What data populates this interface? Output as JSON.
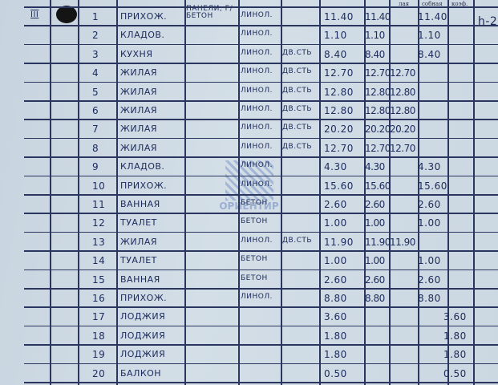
{
  "header": {
    "residential_partial": "лая",
    "auxiliary_partial": "собная",
    "coefficient": "коэф."
  },
  "section": "III",
  "height_note": "h-2",
  "walls_note": "ПАНЕЛИ, Г/БЕТОН",
  "watermark": "ОРИЕНТИР",
  "rows": [
    {
      "n": "1",
      "name": "ПРИХОЖ.",
      "floor": "ЛИНОЛ.",
      "door": "",
      "total": "11.40",
      "area": "11.40",
      "living": "",
      "aux": "11.40",
      "coef": ""
    },
    {
      "n": "2",
      "name": "КЛАДОВ.",
      "floor": "ЛИНОЛ.",
      "door": "",
      "total": "1.10",
      "area": "1.10",
      "living": "",
      "aux": "1.10",
      "coef": ""
    },
    {
      "n": "3",
      "name": "КУХНЯ",
      "floor": "ЛИНОЛ.",
      "door": "ДВ.СТЬ",
      "total": "8.40",
      "area": "8.40",
      "living": "",
      "aux": "8.40",
      "coef": ""
    },
    {
      "n": "4",
      "name": "ЖИЛАЯ",
      "floor": "ЛИНОЛ.",
      "door": "ДВ.СТЬ",
      "total": "12.70",
      "area": "12.70",
      "living": "12.70",
      "aux": "",
      "coef": ""
    },
    {
      "n": "5",
      "name": "ЖИЛАЯ",
      "floor": "ЛИНОЛ.",
      "door": "ДВ.СТЬ",
      "total": "12.80",
      "area": "12.80",
      "living": "12.80",
      "aux": "",
      "coef": ""
    },
    {
      "n": "6",
      "name": "ЖИЛАЯ",
      "floor": "ЛИНОЛ.",
      "door": "ДВ.СТЬ",
      "total": "12.80",
      "area": "12.80",
      "living": "12.80",
      "aux": "",
      "coef": ""
    },
    {
      "n": "7",
      "name": "ЖИЛАЯ",
      "floor": "ЛИНОЛ.",
      "door": "ДВ.СТЬ",
      "total": "20.20",
      "area": "20.20",
      "living": "20.20",
      "aux": "",
      "coef": ""
    },
    {
      "n": "8",
      "name": "ЖИЛАЯ",
      "floor": "ЛИНОЛ.",
      "door": "ДВ.СТЬ",
      "total": "12.70",
      "area": "12.70",
      "living": "12.70",
      "aux": "",
      "coef": ""
    },
    {
      "n": "9",
      "name": "КЛАДОВ.",
      "floor": "ЛИНОЛ.",
      "door": "",
      "total": "4.30",
      "area": "4.30",
      "living": "",
      "aux": "4.30",
      "coef": ""
    },
    {
      "n": "10",
      "name": "ПРИХОЖ.",
      "floor": "ЛИНОЛ.",
      "door": "",
      "total": "15.60",
      "area": "15.60",
      "living": "",
      "aux": "15.60",
      "coef": ""
    },
    {
      "n": "11",
      "name": "ВАННАЯ",
      "floor": "БЕТОН",
      "door": "",
      "total": "2.60",
      "area": "2.60",
      "living": "",
      "aux": "2.60",
      "coef": ""
    },
    {
      "n": "12",
      "name": "ТУАЛЕТ",
      "floor": "БЕТОН",
      "door": "",
      "total": "1.00",
      "area": "1.00",
      "living": "",
      "aux": "1.00",
      "coef": ""
    },
    {
      "n": "13",
      "name": "ЖИЛАЯ",
      "floor": "ЛИНОЛ.",
      "door": "ДВ.СТЬ",
      "total": "11.90",
      "area": "11.90",
      "living": "11.90",
      "aux": "",
      "coef": ""
    },
    {
      "n": "14",
      "name": "ТУАЛЕТ",
      "floor": "БЕТОН",
      "door": "",
      "total": "1.00",
      "area": "1.00",
      "living": "",
      "aux": "1.00",
      "coef": ""
    },
    {
      "n": "15",
      "name": "ВАННАЯ",
      "floor": "БЕТОН",
      "door": "",
      "total": "2.60",
      "area": "2.60",
      "living": "",
      "aux": "2.60",
      "coef": ""
    },
    {
      "n": "16",
      "name": "ПРИХОЖ.",
      "floor": "ЛИНОЛ.",
      "door": "",
      "total": "8.80",
      "area": "8.80",
      "living": "",
      "aux": "8.80",
      "coef": ""
    },
    {
      "n": "17",
      "name": "ЛОДЖИЯ",
      "floor": "",
      "door": "",
      "total": "3.60",
      "area": "",
      "living": "",
      "aux": "",
      "coef": "3.60"
    },
    {
      "n": "18",
      "name": "ЛОДЖИЯ",
      "floor": "",
      "door": "",
      "total": "1.80",
      "area": "",
      "living": "",
      "aux": "",
      "coef": "1.80"
    },
    {
      "n": "19",
      "name": "ЛОДЖИЯ",
      "floor": "",
      "door": "",
      "total": "1.80",
      "area": "",
      "living": "",
      "aux": "",
      "coef": "1.80"
    },
    {
      "n": "20",
      "name": "БАЛКОН",
      "floor": "",
      "door": "",
      "total": "0.50",
      "area": "",
      "living": "",
      "aux": "",
      "coef": "0.50"
    }
  ]
}
